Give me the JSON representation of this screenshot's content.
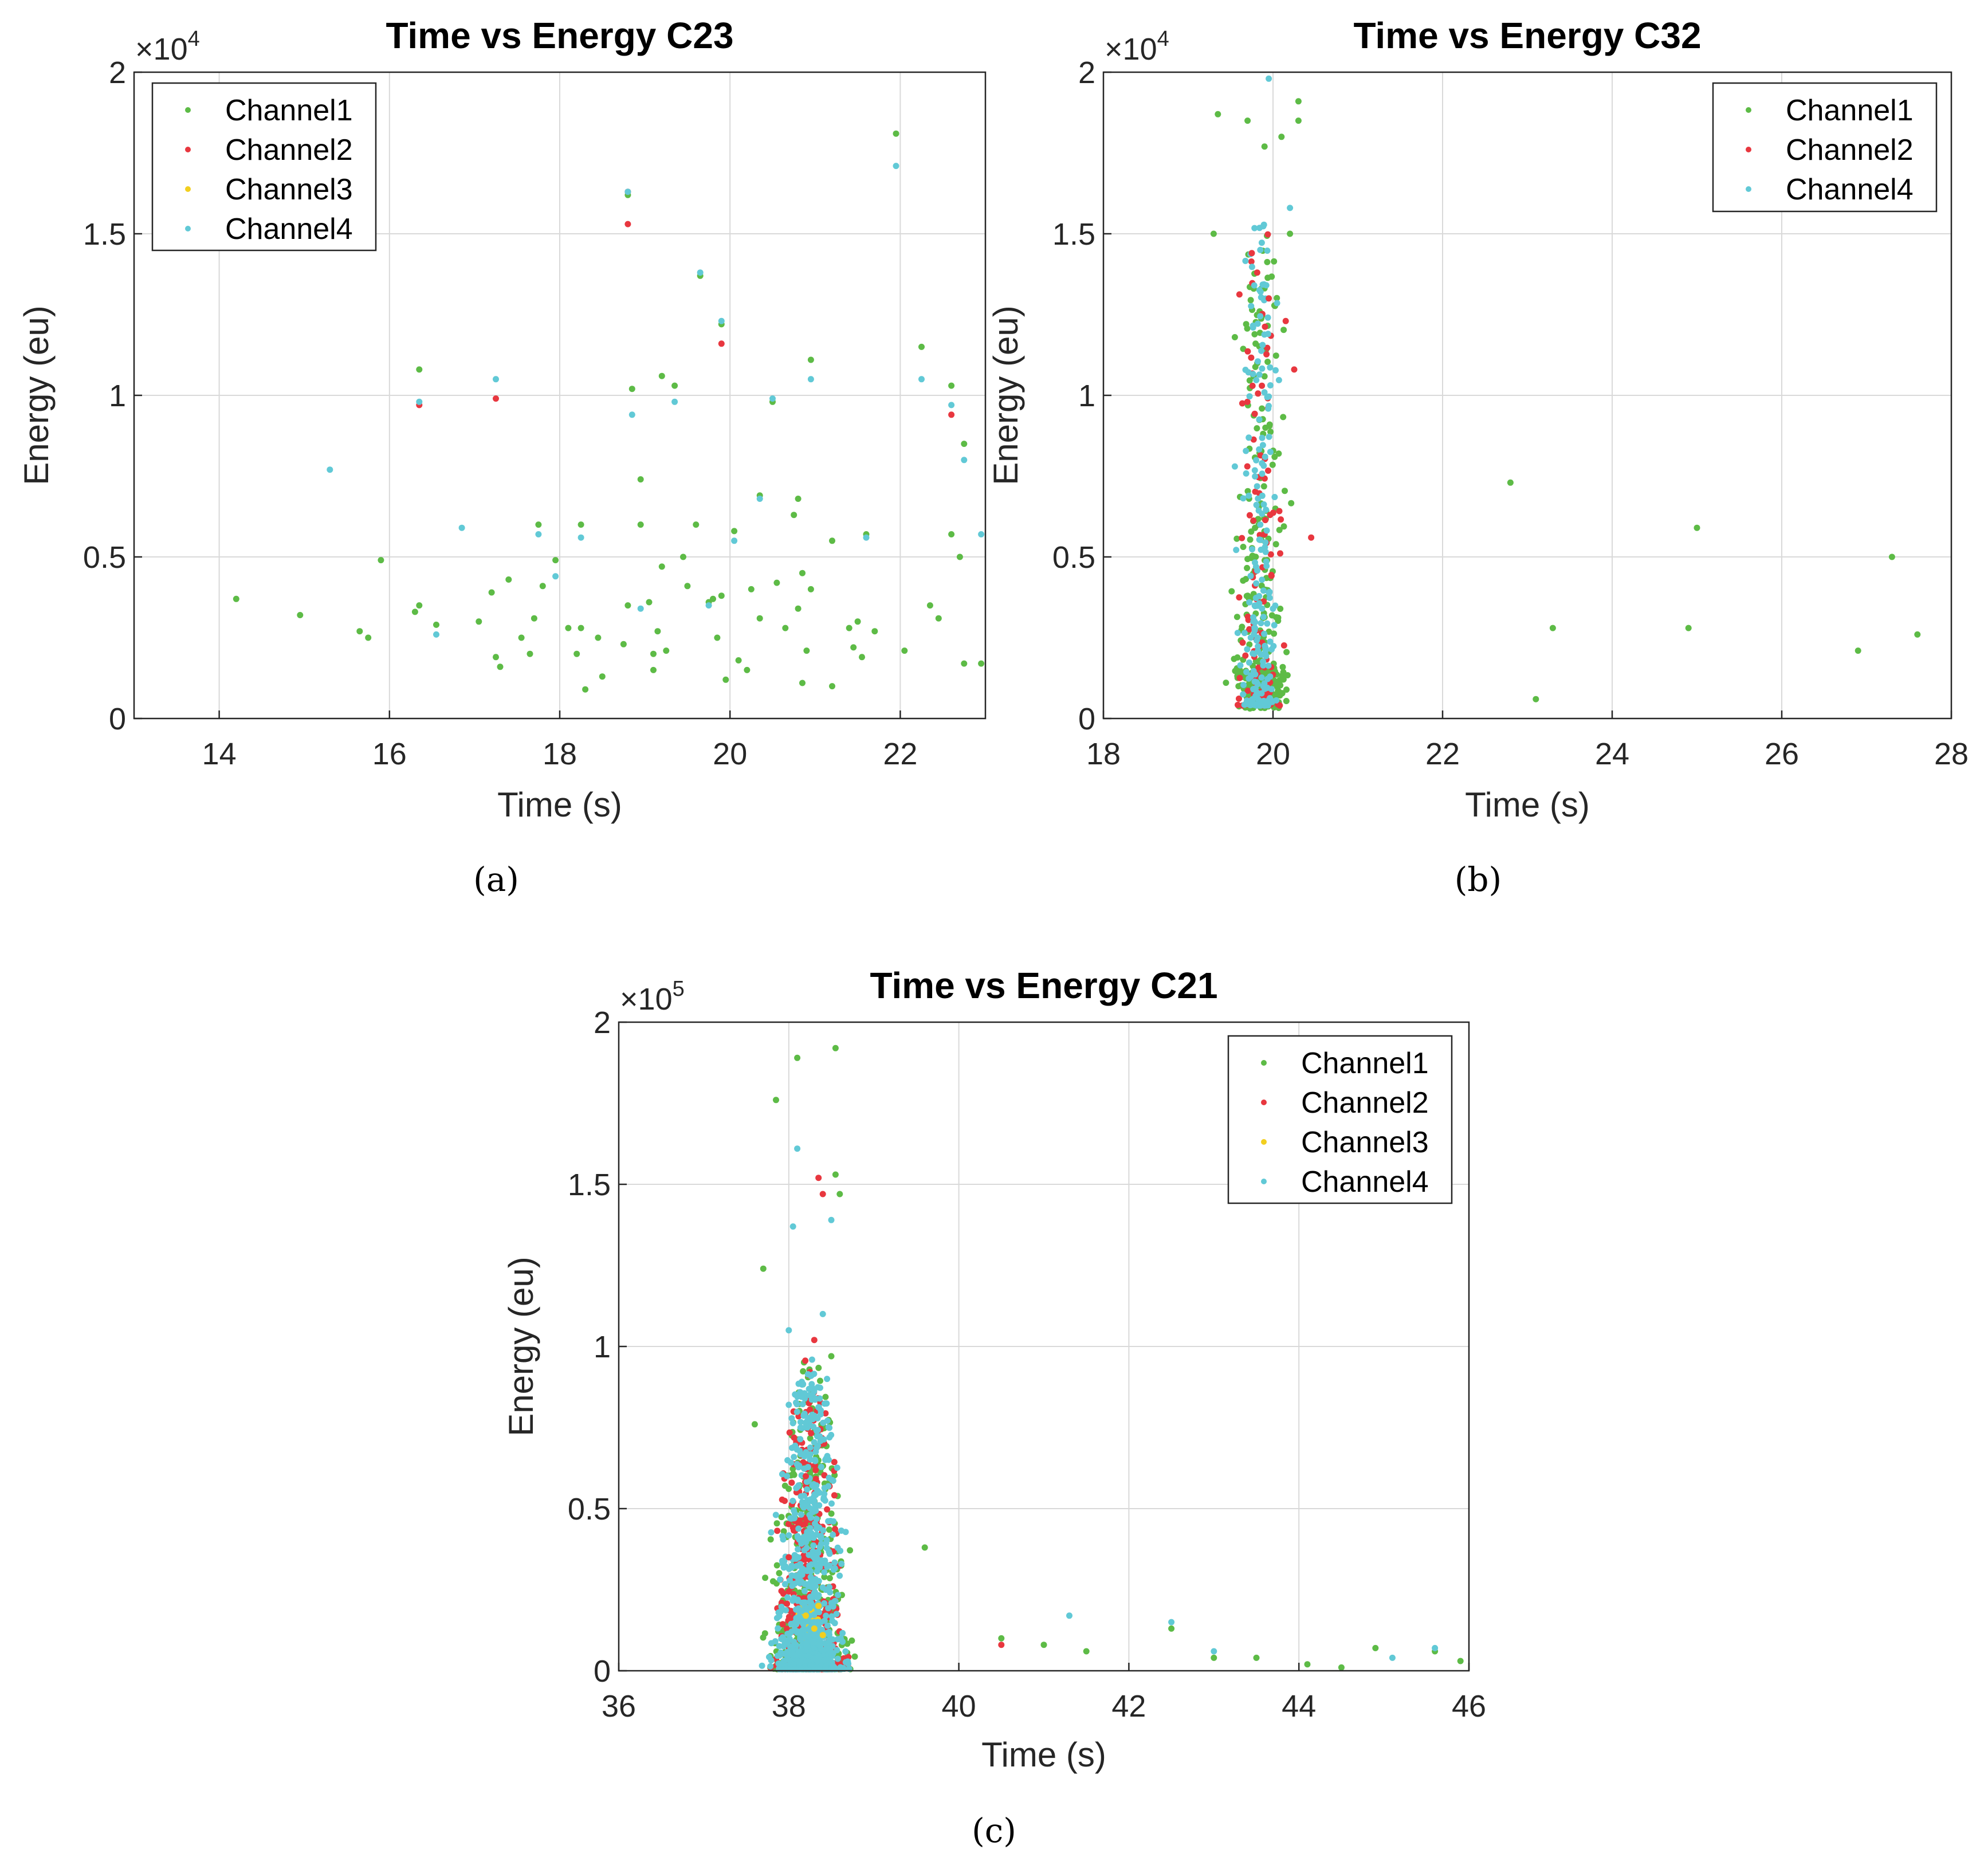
{
  "colors": {
    "Channel1": "#5dbb46",
    "Channel2": "#e8373f",
    "Channel3": "#f2cf1f",
    "Channel4": "#61c9d6",
    "grid": "#d9d9d9",
    "axis": "#262626"
  },
  "chart_data": [
    {
      "id": "a",
      "type": "scatter",
      "title": "Time vs Energy C23",
      "caption": "(a)",
      "xlabel": "Time (s)",
      "ylabel": "Energy (eu)",
      "y_exponent_label": "×10",
      "y_exponent": "4",
      "xlim": [
        13,
        23
      ],
      "ylim": [
        0,
        2
      ],
      "xticks": [
        14,
        16,
        18,
        20,
        22
      ],
      "yticks": [
        0,
        0.5,
        1,
        1.5,
        2
      ],
      "ytick_labels": [
        "0",
        "0.5",
        "1",
        "1.5",
        "2"
      ],
      "grid": true,
      "legend_position": "top-left",
      "legend": [
        "Channel1",
        "Channel2",
        "Channel3",
        "Channel4"
      ],
      "series": [
        {
          "name": "Channel1",
          "points": [
            [
              14.2,
              0.37
            ],
            [
              14.95,
              0.32
            ],
            [
              15.65,
              0.27
            ],
            [
              15.75,
              0.25
            ],
            [
              15.9,
              0.49
            ],
            [
              16.3,
              0.33
            ],
            [
              16.35,
              0.35
            ],
            [
              16.35,
              1.08
            ],
            [
              16.55,
              0.29
            ],
            [
              17.05,
              0.3
            ],
            [
              17.2,
              0.39
            ],
            [
              17.25,
              0.19
            ],
            [
              17.3,
              0.16
            ],
            [
              17.4,
              0.43
            ],
            [
              17.55,
              0.25
            ],
            [
              17.65,
              0.2
            ],
            [
              17.7,
              0.31
            ],
            [
              17.75,
              0.6
            ],
            [
              17.8,
              0.41
            ],
            [
              17.95,
              0.49
            ],
            [
              18.1,
              0.28
            ],
            [
              18.2,
              0.2
            ],
            [
              18.25,
              0.6
            ],
            [
              18.25,
              0.28
            ],
            [
              18.3,
              0.09
            ],
            [
              18.5,
              0.13
            ],
            [
              18.45,
              0.25
            ],
            [
              18.75,
              0.23
            ],
            [
              18.8,
              0.35
            ],
            [
              18.85,
              1.02
            ],
            [
              18.95,
              0.74
            ],
            [
              18.95,
              0.6
            ],
            [
              19.05,
              0.36
            ],
            [
              19.1,
              0.2
            ],
            [
              19.1,
              0.15
            ],
            [
              19.15,
              0.27
            ],
            [
              19.2,
              0.47
            ],
            [
              19.2,
              1.06
            ],
            [
              19.25,
              0.21
            ],
            [
              19.35,
              1.03
            ],
            [
              19.45,
              0.5
            ],
            [
              19.5,
              0.41
            ],
            [
              19.6,
              0.6
            ],
            [
              19.75,
              0.36
            ],
            [
              19.8,
              0.37
            ],
            [
              19.85,
              0.25
            ],
            [
              19.9,
              0.38
            ],
            [
              19.95,
              0.12
            ],
            [
              20.05,
              0.58
            ],
            [
              20.1,
              0.18
            ],
            [
              20.2,
              0.15
            ],
            [
              20.25,
              0.4
            ],
            [
              20.35,
              0.31
            ],
            [
              20.35,
              0.69
            ],
            [
              20.55,
              0.42
            ],
            [
              20.65,
              0.28
            ],
            [
              20.75,
              0.63
            ],
            [
              20.8,
              0.68
            ],
            [
              20.8,
              0.34
            ],
            [
              20.85,
              0.11
            ],
            [
              20.85,
              0.45
            ],
            [
              20.9,
              0.21
            ],
            [
              20.95,
              0.4
            ],
            [
              20.95,
              1.11
            ],
            [
              21.2,
              0.1
            ],
            [
              21.2,
              0.55
            ],
            [
              21.4,
              0.28
            ],
            [
              21.45,
              0.22
            ],
            [
              21.5,
              0.3
            ],
            [
              21.55,
              0.19
            ],
            [
              21.6,
              0.57
            ],
            [
              21.7,
              0.27
            ],
            [
              21.95,
              1.81
            ],
            [
              22.05,
              0.21
            ],
            [
              22.25,
              1.15
            ],
            [
              22.35,
              0.35
            ],
            [
              22.45,
              0.31
            ],
            [
              22.6,
              1.03
            ],
            [
              22.6,
              0.57
            ],
            [
              22.7,
              0.5
            ],
            [
              22.75,
              0.85
            ],
            [
              22.75,
              0.17
            ],
            [
              22.95,
              0.17
            ],
            [
              18.8,
              1.62
            ],
            [
              19.65,
              1.37
            ],
            [
              19.9,
              1.22
            ],
            [
              20.5,
              0.98
            ]
          ]
        },
        {
          "name": "Channel2",
          "points": [
            [
              16.35,
              0.97
            ],
            [
              17.25,
              0.99
            ],
            [
              18.8,
              1.53
            ],
            [
              19.9,
              1.16
            ],
            [
              22.6,
              0.94
            ],
            [
              18.8,
              1.63
            ]
          ]
        },
        {
          "name": "Channel3",
          "points": []
        },
        {
          "name": "Channel4",
          "points": [
            [
              15.3,
              0.77
            ],
            [
              16.35,
              0.98
            ],
            [
              16.55,
              0.26
            ],
            [
              16.85,
              0.59
            ],
            [
              17.25,
              1.05
            ],
            [
              17.75,
              0.57
            ],
            [
              17.95,
              0.44
            ],
            [
              18.25,
              0.56
            ],
            [
              18.8,
              1.63
            ],
            [
              18.85,
              0.94
            ],
            [
              18.95,
              0.34
            ],
            [
              19.35,
              0.98
            ],
            [
              19.65,
              1.38
            ],
            [
              19.75,
              0.35
            ],
            [
              19.9,
              1.23
            ],
            [
              20.05,
              0.55
            ],
            [
              20.35,
              0.68
            ],
            [
              20.5,
              0.99
            ],
            [
              20.95,
              1.05
            ],
            [
              21.6,
              0.56
            ],
            [
              21.95,
              1.71
            ],
            [
              22.25,
              1.05
            ],
            [
              22.6,
              0.97
            ],
            [
              22.75,
              0.8
            ],
            [
              22.95,
              0.57
            ]
          ]
        }
      ]
    },
    {
      "id": "b",
      "type": "scatter",
      "title": "Time vs Energy C32",
      "caption": "(b)",
      "xlabel": "Time (s)",
      "ylabel": "Energy (eu)",
      "y_exponent_label": "×10",
      "y_exponent": "4",
      "xlim": [
        18,
        28
      ],
      "ylim": [
        0,
        2
      ],
      "xticks": [
        18,
        20,
        22,
        24,
        26,
        28
      ],
      "yticks": [
        0,
        0.5,
        1,
        1.5,
        2
      ],
      "ytick_labels": [
        "0",
        "0.5",
        "1",
        "1.5",
        "2"
      ],
      "grid": true,
      "legend_position": "top-right",
      "legend": [
        "Channel1",
        "Channel2",
        "Channel4"
      ],
      "cluster": {
        "x_range": [
          18.5,
          21.0
        ],
        "x_center": 19.85
      },
      "series": [
        {
          "name": "Channel1",
          "points": [
            [
              19.35,
              1.87
            ],
            [
              19.7,
              1.85
            ],
            [
              20.3,
              1.91
            ],
            [
              20.3,
              1.85
            ],
            [
              19.9,
              1.77
            ],
            [
              20.1,
              1.8
            ],
            [
              19.3,
              1.5
            ],
            [
              20.2,
              1.5
            ],
            [
              19.55,
              1.18
            ],
            [
              22.8,
              0.73
            ],
            [
              23.1,
              0.06
            ],
            [
              23.3,
              0.28
            ],
            [
              24.9,
              0.28
            ],
            [
              25.0,
              0.59
            ],
            [
              26.9,
              0.21
            ],
            [
              27.3,
              0.5
            ],
            [
              27.6,
              0.26
            ]
          ]
        },
        {
          "name": "Channel2",
          "points": [
            [
              19.75,
              1.44
            ],
            [
              19.95,
              1.3
            ],
            [
              20.15,
              1.23
            ],
            [
              20.25,
              1.08
            ],
            [
              20.45,
              0.56
            ]
          ]
        },
        {
          "name": "Channel4",
          "points": [
            [
              19.95,
              1.98
            ],
            [
              20.2,
              1.58
            ],
            [
              19.85,
              1.45
            ],
            [
              19.55,
              0.78
            ],
            [
              19.85,
              0.6
            ]
          ]
        }
      ]
    },
    {
      "id": "c",
      "type": "scatter",
      "title": "Time vs Energy C21",
      "caption": "(c)",
      "xlabel": "Time (s)",
      "ylabel": "Energy (eu)",
      "y_exponent_label": "×10",
      "y_exponent": "5",
      "xlim": [
        36,
        46
      ],
      "ylim": [
        0,
        2
      ],
      "xticks": [
        36,
        38,
        40,
        42,
        44,
        46
      ],
      "yticks": [
        0,
        0.5,
        1,
        1.5,
        2
      ],
      "ytick_labels": [
        "0",
        "0.5",
        "1",
        "1.5",
        "2"
      ],
      "grid": true,
      "legend_position": "top-right",
      "legend": [
        "Channel1",
        "Channel2",
        "Channel3",
        "Channel4"
      ],
      "cluster": {
        "x_range": [
          36.7,
          40.5
        ],
        "x_center": 38.25
      },
      "series": [
        {
          "name": "Channel1",
          "points": [
            [
              38.1,
              1.89
            ],
            [
              38.55,
              1.92
            ],
            [
              37.85,
              1.76
            ],
            [
              38.55,
              1.53
            ],
            [
              38.6,
              1.47
            ],
            [
              37.7,
              1.24
            ],
            [
              38.5,
              0.97
            ],
            [
              37.6,
              0.76
            ],
            [
              39.6,
              0.38
            ],
            [
              40.5,
              0.1
            ],
            [
              41.0,
              0.08
            ],
            [
              41.5,
              0.06
            ],
            [
              42.5,
              0.13
            ],
            [
              43.0,
              0.04
            ],
            [
              43.5,
              0.04
            ],
            [
              44.1,
              0.02
            ],
            [
              44.5,
              0.01
            ],
            [
              44.9,
              0.07
            ],
            [
              45.6,
              0.06
            ],
            [
              45.9,
              0.03
            ]
          ]
        },
        {
          "name": "Channel2",
          "points": [
            [
              38.35,
              1.52
            ],
            [
              38.4,
              1.47
            ],
            [
              38.3,
              1.02
            ],
            [
              38.2,
              0.6
            ],
            [
              38.0,
              0.35
            ],
            [
              40.5,
              0.08
            ]
          ]
        },
        {
          "name": "Channel3",
          "points": [
            [
              38.3,
              0.13
            ],
            [
              38.2,
              0.17
            ],
            [
              38.4,
              0.11
            ],
            [
              38.35,
              0.2
            ]
          ]
        },
        {
          "name": "Channel4",
          "points": [
            [
              38.1,
              1.61
            ],
            [
              38.05,
              1.37
            ],
            [
              38.5,
              1.39
            ],
            [
              38.4,
              1.1
            ],
            [
              38.0,
              1.05
            ],
            [
              38.45,
              0.9
            ],
            [
              38.0,
              0.82
            ],
            [
              41.3,
              0.17
            ],
            [
              42.5,
              0.15
            ],
            [
              43.0,
              0.06
            ],
            [
              45.1,
              0.04
            ],
            [
              45.6,
              0.07
            ]
          ]
        }
      ]
    }
  ]
}
